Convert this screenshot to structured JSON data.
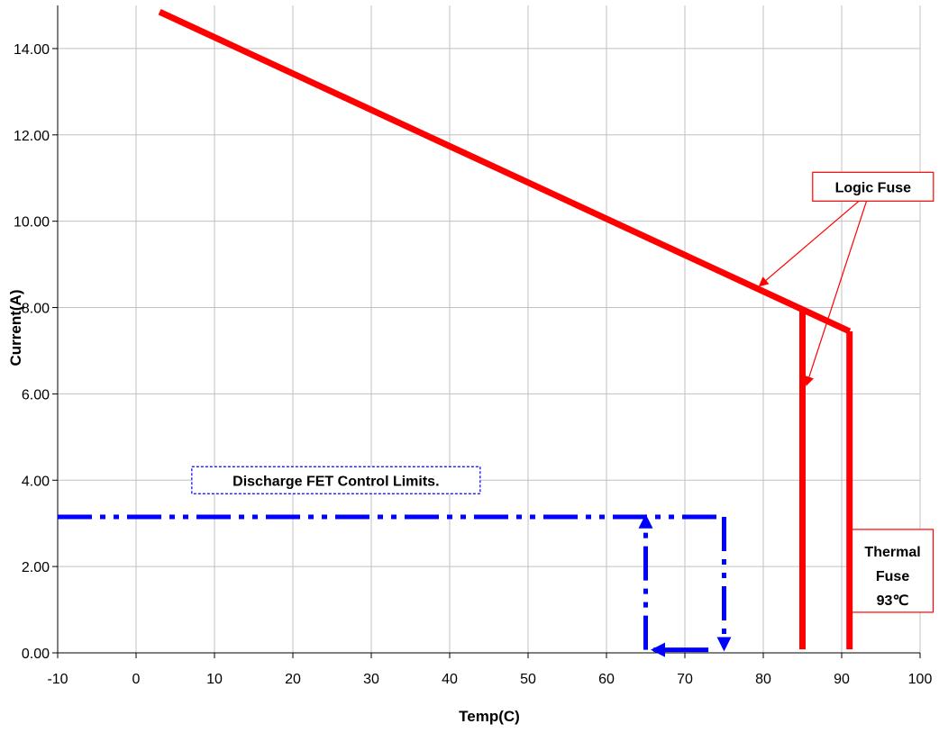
{
  "chart_data": {
    "type": "line",
    "title": "",
    "xlabel": "Temp(C)",
    "ylabel": "Current(A)",
    "xlim": [
      -10,
      100
    ],
    "ylim": [
      0,
      15
    ],
    "x_ticks": [
      -10,
      0,
      10,
      20,
      30,
      40,
      50,
      60,
      70,
      80,
      90,
      100
    ],
    "x_tick_labels": [
      "-10",
      "0",
      "10",
      "20",
      "30",
      "40",
      "50",
      "60",
      "70",
      "80",
      "90",
      "100"
    ],
    "y_ticks": [
      0,
      2,
      4,
      6,
      8,
      10,
      12,
      14
    ],
    "y_tick_labels": [
      "0.00",
      "2.00",
      "4.00",
      "6.00",
      "8.00",
      "10.00",
      "12.00",
      "14.00"
    ],
    "grid": true,
    "colors": {
      "fuse": "#ff0000",
      "fet": "#0000ff",
      "grid": "#c0c0c0"
    },
    "series": [
      {
        "style": "solid",
        "color": "#ff0000",
        "x": [
          3,
          91
        ],
        "y": [
          14.85,
          7.45
        ]
      },
      {
        "style": "solid",
        "color": "#ff0000",
        "x": [
          85,
          85
        ],
        "y": [
          7.95,
          0.08
        ]
      },
      {
        "style": "solid",
        "color": "#ff0000",
        "x": [
          91,
          91
        ],
        "y": [
          7.45,
          0.08
        ]
      },
      {
        "style": "dash-dot-dot",
        "color": "#0000ff",
        "x": [
          -10,
          75
        ],
        "y": [
          3.15,
          3.15
        ]
      },
      {
        "style": "dash-dot-dot",
        "color": "#0000ff",
        "x": [
          75,
          75
        ],
        "y": [
          3.15,
          0.1
        ]
      },
      {
        "style": "solid",
        "color": "#0000ff",
        "x": [
          73,
          66
        ],
        "y": [
          0.07,
          0.07
        ]
      },
      {
        "style": "dash-dot-dot",
        "color": "#0000ff",
        "x": [
          65,
          65
        ],
        "y": [
          0.07,
          3.15
        ]
      }
    ],
    "annotations": [
      {
        "text": "Logic Fuse",
        "x": 94,
        "y": 10.8,
        "color": "#ff0000",
        "arrows_to": [
          [
            79.5,
            8.5
          ],
          [
            85.5,
            6.2
          ]
        ]
      },
      {
        "text": "Discharge FET Control Limits.",
        "x": 25.5,
        "y": 4.0,
        "color": "#0000ff"
      },
      {
        "lines": [
          "Thermal",
          "Fuse",
          "93℃"
        ],
        "x": 96.5,
        "y": 1.9,
        "color": "#ff0000"
      }
    ]
  }
}
